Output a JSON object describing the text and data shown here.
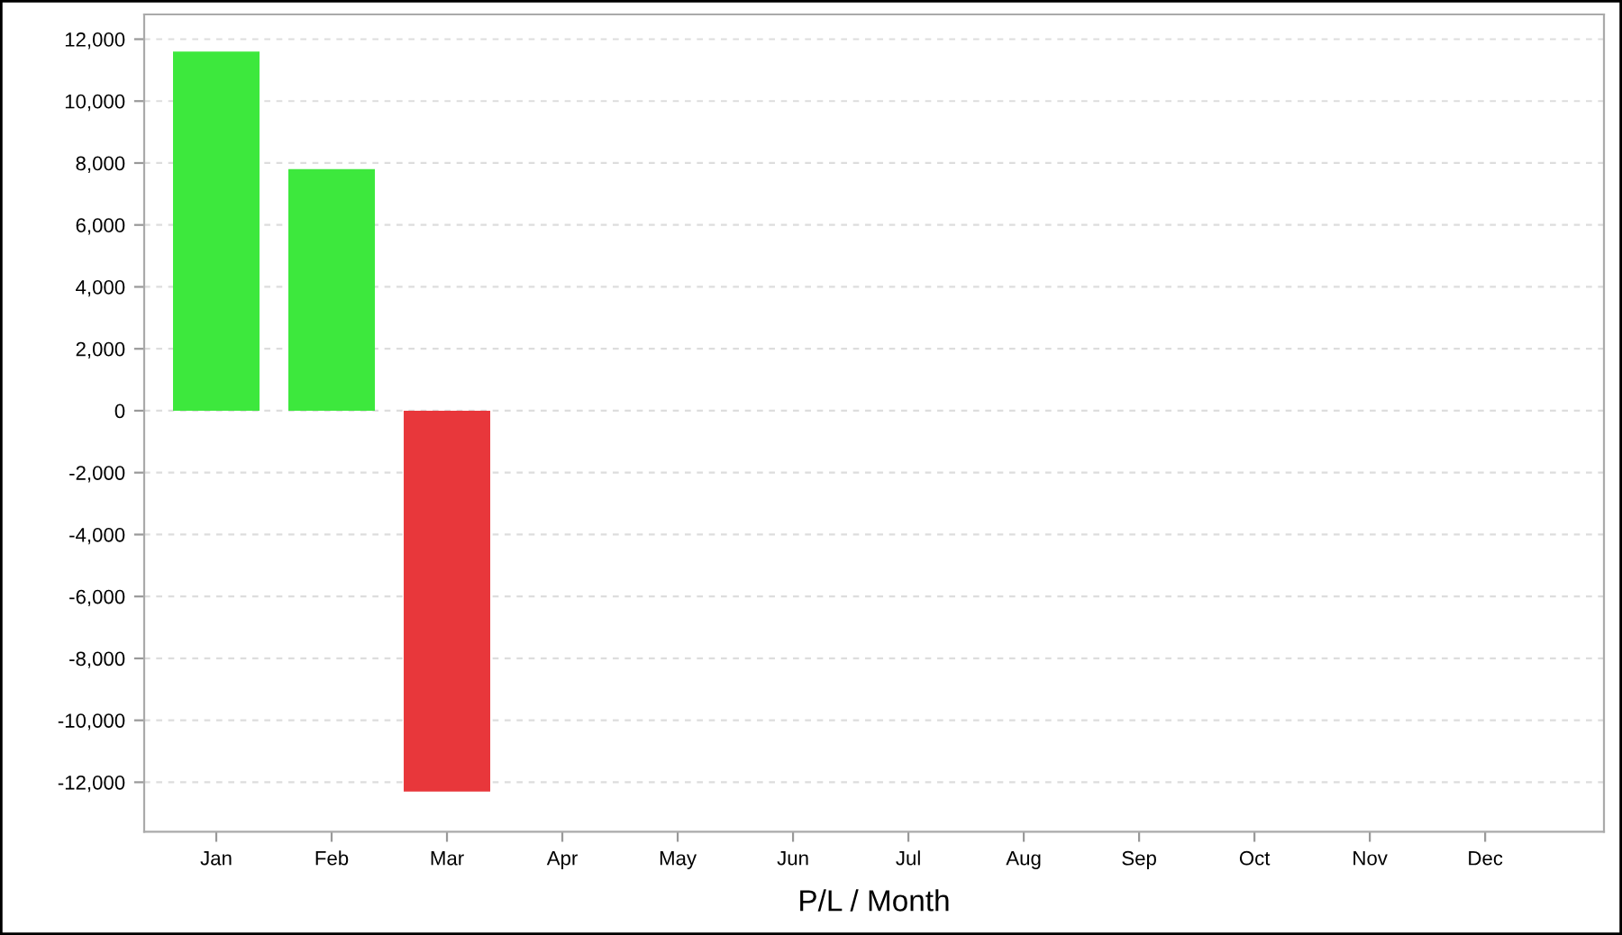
{
  "chart_data": {
    "type": "bar",
    "xlabel": "P/L / Month",
    "categories": [
      "Jan",
      "Feb",
      "Mar",
      "Apr",
      "May",
      "Jun",
      "Jul",
      "Aug",
      "Sep",
      "Oct",
      "Nov",
      "Dec"
    ],
    "values": [
      11600,
      7800,
      -12300,
      null,
      null,
      null,
      null,
      null,
      null,
      null,
      null,
      null
    ],
    "colors": [
      "#3de83d",
      "#3de83d",
      "#e8373b",
      "#3de83d",
      "#3de83d",
      "#3de83d",
      "#3de83d",
      "#3de83d",
      "#3de83d",
      "#3de83d",
      "#3de83d",
      "#3de83d"
    ],
    "ylim": [
      -13600,
      12800
    ],
    "yticks": [
      {
        "value": -12000,
        "label": "-12,000"
      },
      {
        "value": -10000,
        "label": "-10,000"
      },
      {
        "value": -8000,
        "label": "-8,000"
      },
      {
        "value": -6000,
        "label": "-6,000"
      },
      {
        "value": -4000,
        "label": "-4,000"
      },
      {
        "value": -2000,
        "label": "-2,000"
      },
      0,
      {
        "value": 2000,
        "label": "2,000"
      },
      {
        "value": 4000,
        "label": "4,000"
      },
      {
        "value": 6000,
        "label": "6,000"
      },
      {
        "value": 8000,
        "label": "8,000"
      },
      {
        "value": 10000,
        "label": "10,000"
      },
      {
        "value": 12000,
        "label": "12,000"
      }
    ],
    "grid": "y"
  }
}
